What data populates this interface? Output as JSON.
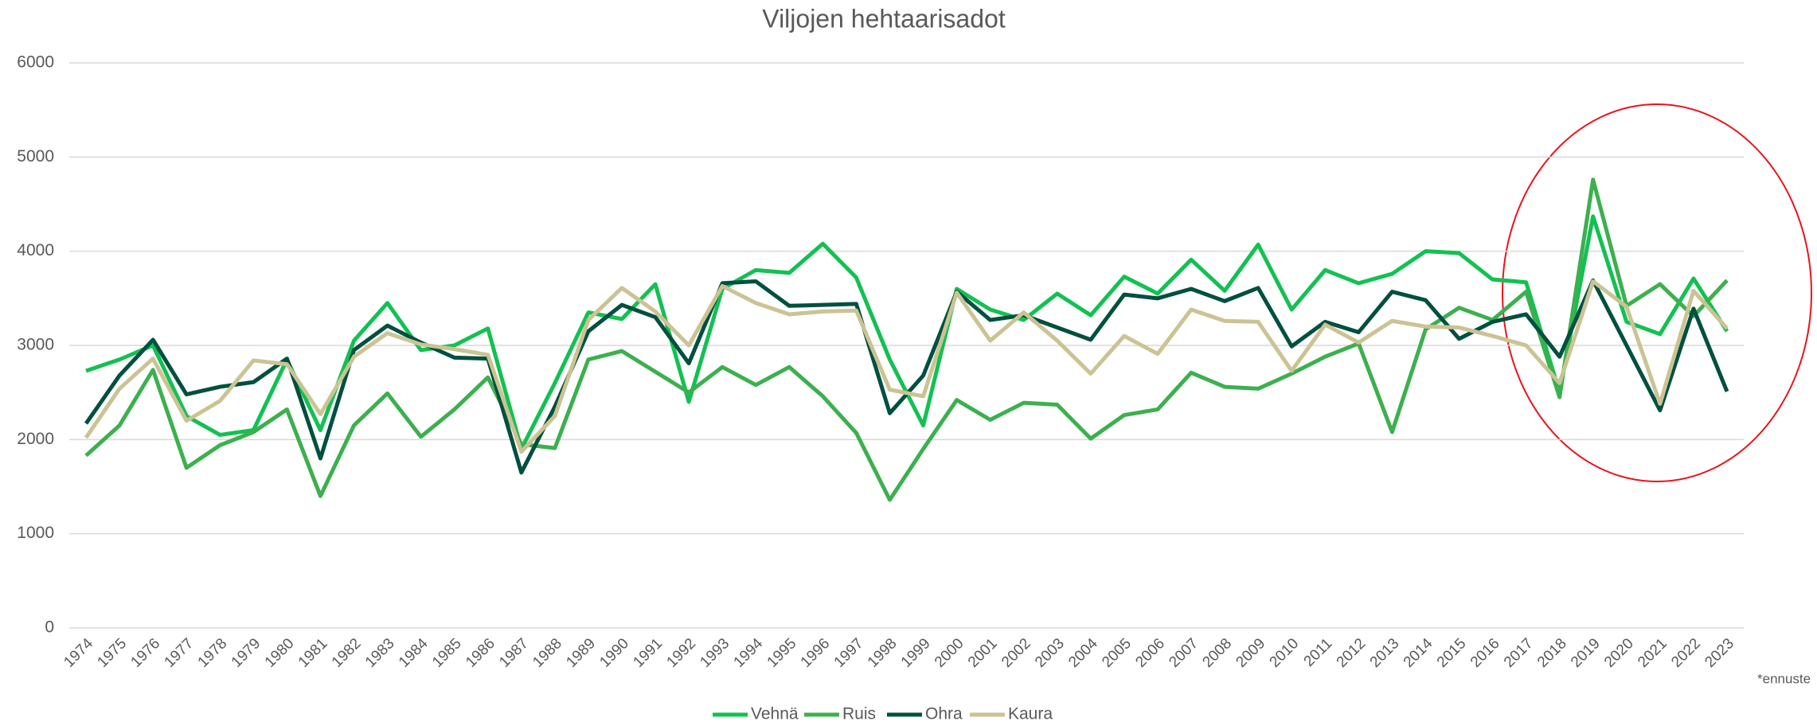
{
  "chart_data": {
    "type": "line",
    "title": "Viljojen hehtaarisadot",
    "annotation": "*ennuste",
    "categories": [
      "1974",
      "1975",
      "1976",
      "1977",
      "1978",
      "1979",
      "1980",
      "1981",
      "1982",
      "1983",
      "1984",
      "1985",
      "1986",
      "1987",
      "1988",
      "1989",
      "1990",
      "1991",
      "1992",
      "1993",
      "1994",
      "1995",
      "1996",
      "1997",
      "1998",
      "1999",
      "2000",
      "2001",
      "2002",
      "2003",
      "2004",
      "2005",
      "2006",
      "2007",
      "2008",
      "2009",
      "2010",
      "2011",
      "2012",
      "2013",
      "2014",
      "2015",
      "2016",
      "2017",
      "2018",
      "2019",
      "2020",
      "2021",
      "2022",
      "2023"
    ],
    "series": [
      {
        "name": "Vehnä",
        "color": "#12c152",
        "values": [
          2730,
          2850,
          3000,
          2250,
          2050,
          2100,
          2850,
          2100,
          3050,
          3450,
          2950,
          3000,
          3180,
          1900,
          2600,
          3350,
          3280,
          3650,
          2400,
          3600,
          3800,
          3770,
          4080,
          3720,
          2850,
          2150,
          3600,
          3380,
          3270,
          3550,
          3320,
          3730,
          3550,
          3910,
          3580,
          4070,
          3380,
          3800,
          3660,
          3760,
          4000,
          3980,
          3700,
          3670,
          2500,
          4370,
          3250,
          3120,
          3710,
          3150
        ]
      },
      {
        "name": "Ruis",
        "color": "#3cb04e",
        "values": [
          1830,
          2150,
          2740,
          1700,
          1940,
          2080,
          2320,
          1400,
          2150,
          2490,
          2030,
          2320,
          2660,
          1950,
          1910,
          2850,
          2940,
          2720,
          2500,
          2770,
          2580,
          2770,
          2460,
          2070,
          1360,
          1900,
          2420,
          2210,
          2390,
          2370,
          2010,
          2260,
          2320,
          2710,
          2560,
          2540,
          2700,
          2880,
          3020,
          2080,
          3170,
          3400,
          3270,
          3570,
          2450,
          4760,
          3420,
          3650,
          3310,
          3690
        ]
      },
      {
        "name": "Ohra",
        "color": "#00503f",
        "values": [
          2170,
          2680,
          3060,
          2480,
          2560,
          2610,
          2860,
          1800,
          2950,
          3210,
          3030,
          2870,
          2860,
          1650,
          2350,
          3150,
          3430,
          3300,
          2810,
          3660,
          3680,
          3420,
          3430,
          3440,
          2280,
          2680,
          3570,
          3270,
          3320,
          3190,
          3060,
          3540,
          3500,
          3600,
          3470,
          3610,
          2990,
          3250,
          3140,
          3570,
          3480,
          3070,
          3250,
          3330,
          2880,
          3690,
          3000,
          2310,
          3390,
          2510
        ]
      },
      {
        "name": "Kaura",
        "color": "#cbc394",
        "values": [
          2020,
          2540,
          2860,
          2200,
          2410,
          2840,
          2800,
          2270,
          2880,
          3130,
          3010,
          2960,
          2900,
          1870,
          2250,
          3270,
          3610,
          3360,
          3000,
          3630,
          3450,
          3330,
          3360,
          3370,
          2530,
          2460,
          3560,
          3050,
          3350,
          3050,
          2700,
          3100,
          2910,
          3380,
          3260,
          3250,
          2730,
          3220,
          3030,
          3260,
          3200,
          3190,
          3100,
          3000,
          2600,
          3680,
          3410,
          2380,
          3580,
          3180
        ]
      }
    ],
    "ylim": [
      0,
      6000
    ],
    "yticks": [
      0,
      1000,
      2000,
      3000,
      4000,
      5000,
      6000
    ],
    "grid": true,
    "legend": "bottom"
  }
}
